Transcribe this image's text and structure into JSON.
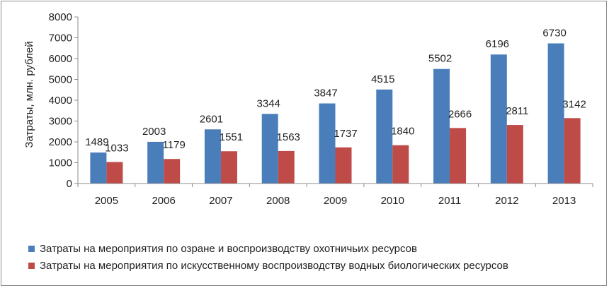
{
  "chart_data": {
    "type": "bar",
    "categories": [
      "2005",
      "2006",
      "2007",
      "2008",
      "2009",
      "2010",
      "2011",
      "2012",
      "2013"
    ],
    "series": [
      {
        "name": "Затраты на мероприятия по озране и воспроизводству охотничьих ресурсов",
        "color": "#4a7ebb",
        "values": [
          1489,
          2003,
          2601,
          3344,
          3847,
          4515,
          5502,
          6196,
          6730
        ]
      },
      {
        "name": "Затраты на мероприятия по искусственному воспроизводству водных биологических ресурсов",
        "color": "#be4b48",
        "values": [
          1033,
          1179,
          1551,
          1563,
          1737,
          1840,
          2666,
          2811,
          3142
        ]
      }
    ],
    "ylabel": "Затраты, млн. рублей",
    "xlabel": "",
    "ylim": [
      0,
      8000
    ],
    "yticks": [
      "0",
      "1000",
      "2000",
      "3000",
      "4000",
      "5000",
      "6000",
      "7000",
      "8000"
    ],
    "grid": false,
    "legend_position": "bottom"
  }
}
